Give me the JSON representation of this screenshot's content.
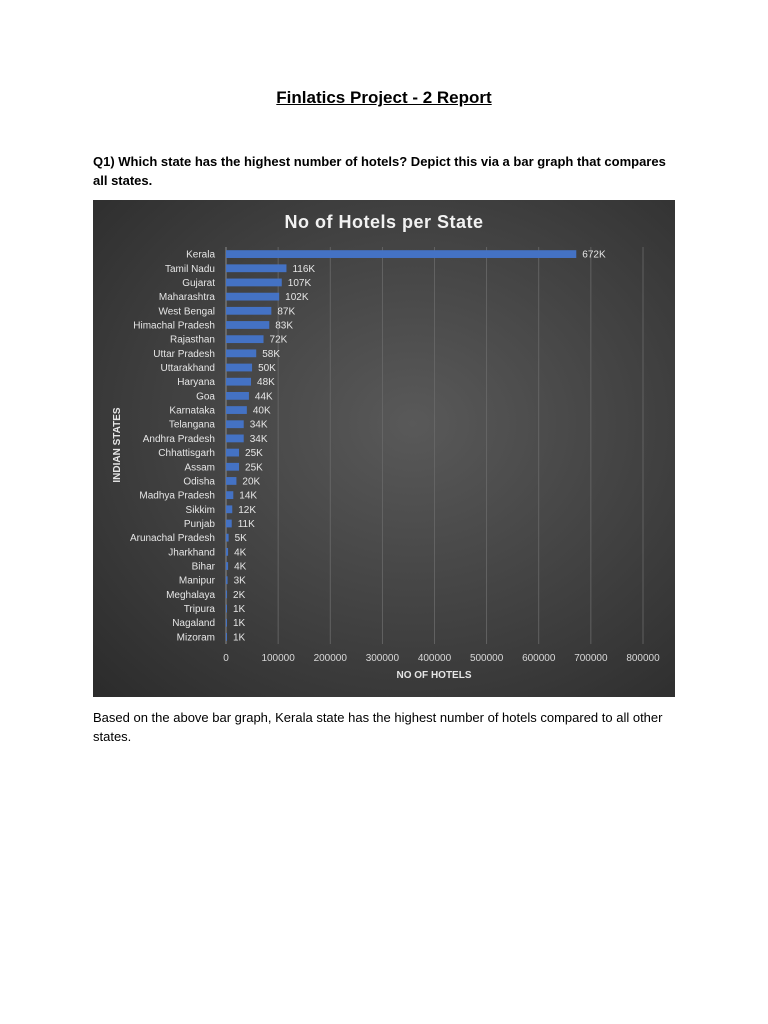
{
  "document": {
    "title": "Finlatics Project - 2 Report",
    "question": "Q1) Which state has the highest number of hotels? Depict this via a bar graph that compares all states.",
    "conclusion": "Based on the above bar graph, Kerala state has the highest number of hotels compared to all other states."
  },
  "chart_data": {
    "type": "bar",
    "orientation": "horizontal",
    "title": "No of Hotels per State",
    "xlabel": "NO OF HOTELS",
    "ylabel": "INDIAN STATES",
    "xlim": [
      0,
      800000
    ],
    "xticks": [
      0,
      100000,
      200000,
      300000,
      400000,
      500000,
      600000,
      700000,
      800000
    ],
    "grid": true,
    "legend": "none",
    "bar_color": "#4472C4",
    "categories": [
      "Kerala",
      "Tamil Nadu",
      "Gujarat",
      "Maharashtra",
      "West Bengal",
      "Himachal Pradesh",
      "Rajasthan",
      "Uttar Pradesh",
      "Uttarakhand",
      "Haryana",
      "Goa",
      "Karnataka",
      "Telangana",
      "Andhra Pradesh",
      "Chhattisgarh",
      "Assam",
      "Odisha",
      "Madhya Pradesh",
      "Sikkim",
      "Punjab",
      "Arunachal Pradesh",
      "Jharkhand",
      "Bihar",
      "Manipur",
      "Meghalaya",
      "Tripura",
      "Nagaland",
      "Mizoram"
    ],
    "values": [
      672000,
      116000,
      107000,
      102000,
      87000,
      83000,
      72000,
      58000,
      50000,
      48000,
      44000,
      40000,
      34000,
      34000,
      25000,
      25000,
      20000,
      14000,
      12000,
      11000,
      5000,
      4000,
      4000,
      3000,
      2000,
      1000,
      1000,
      1000
    ],
    "data_labels": [
      "672K",
      "116K",
      "107K",
      "102K",
      "87K",
      "83K",
      "72K",
      "58K",
      "50K",
      "48K",
      "44K",
      "40K",
      "34K",
      "34K",
      "25K",
      "25K",
      "20K",
      "14K",
      "12K",
      "11K",
      "5K",
      "4K",
      "4K",
      "3K",
      "2K",
      "1K",
      "1K",
      "1K"
    ]
  }
}
